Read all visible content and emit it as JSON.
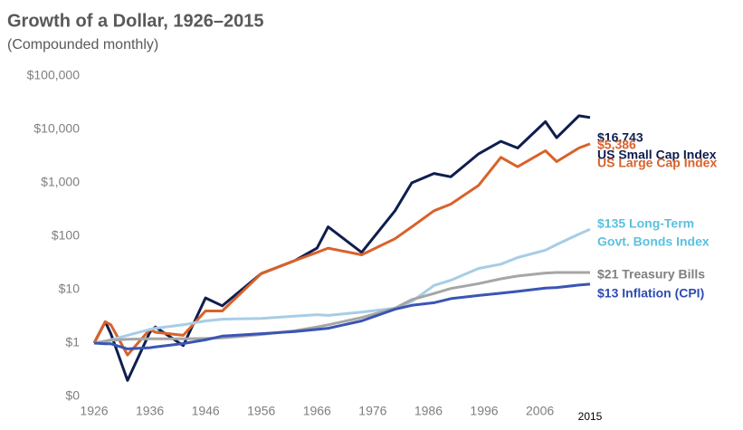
{
  "chart_data": {
    "type": "line",
    "title": "Growth of a Dollar, 1926–2015",
    "subtitle": "(Compounded monthly)",
    "log_scale": true,
    "grid": false,
    "xlim": [
      1926,
      2015
    ],
    "xticks": [
      1926,
      1936,
      1946,
      1956,
      1966,
      1976,
      1986,
      1996,
      2006,
      2015
    ],
    "ylim": [
      0.1,
      100000
    ],
    "yticks": [
      {
        "value": 0.1,
        "label": "$0"
      },
      {
        "value": 1,
        "label": "$1"
      },
      {
        "value": 10,
        "label": "$10"
      },
      {
        "value": 100,
        "label": "$100"
      },
      {
        "value": 1000,
        "label": "$1,000"
      },
      {
        "value": 10000,
        "label": "$10,000"
      },
      {
        "value": 100000,
        "label": "$100,000"
      }
    ],
    "x": [
      1926,
      1928,
      1929,
      1932,
      1936,
      1937,
      1942,
      1946,
      1949,
      1956,
      1962,
      1966,
      1968,
      1974,
      1980,
      1983,
      1987,
      1990,
      1995,
      1999,
      2002,
      2007,
      2009,
      2013,
      2015
    ],
    "series": [
      {
        "label_lines": [
          "$16,743",
          "US Small Cap Index"
        ],
        "color": "#0f1e4f",
        "label_color": "#0f1e4f",
        "values": [
          1,
          2.5,
          1.5,
          0.2,
          1.6,
          2,
          0.9,
          7,
          5,
          20,
          35,
          60,
          150,
          50,
          300,
          1000,
          1500,
          1300,
          3500,
          6000,
          4500,
          14000,
          7000,
          18000,
          16743
        ]
      },
      {
        "label_lines": [
          "$5,386",
          "US Large Cap Index"
        ],
        "color": "#d9622b",
        "label_color": "#d9622b",
        "values": [
          1,
          2.5,
          2.2,
          0.6,
          1.8,
          1.6,
          1.4,
          4,
          4,
          20,
          35,
          50,
          60,
          45,
          90,
          150,
          300,
          400,
          900,
          3000,
          2000,
          4000,
          2500,
          4500,
          5386
        ]
      },
      {
        "label_lines": [
          "$135 Long-Term",
          "Govt. Bonds Index"
        ],
        "color": "#a7cde6",
        "label_color": "#5bc0e0",
        "values": [
          1,
          1.1,
          1.15,
          1.4,
          1.8,
          1.9,
          2.2,
          2.6,
          2.8,
          2.9,
          3.2,
          3.4,
          3.3,
          3.8,
          4.5,
          6,
          12,
          15,
          25,
          30,
          40,
          55,
          70,
          110,
          135
        ]
      },
      {
        "label_lines": [
          "$21 Treasury Bills"
        ],
        "color": "#a6a6a6",
        "label_color": "#7f7f7f",
        "values": [
          1,
          1.08,
          1.13,
          1.18,
          1.2,
          1.2,
          1.2,
          1.22,
          1.25,
          1.45,
          1.7,
          2,
          2.2,
          3,
          4.5,
          6.5,
          8.5,
          10.5,
          13,
          16,
          18,
          20.5,
          21,
          21,
          21
        ]
      },
      {
        "label_lines": [
          "$13 Inflation (CPI)"
        ],
        "color": "#3a55b4",
        "label_color": "#2f4bb5",
        "values": [
          1,
          0.97,
          0.97,
          0.78,
          0.82,
          0.85,
          0.98,
          1.15,
          1.35,
          1.5,
          1.65,
          1.8,
          1.9,
          2.6,
          4.3,
          5.1,
          5.7,
          6.8,
          7.8,
          8.6,
          9.3,
          10.7,
          11,
          12.2,
          12.7
        ]
      }
    ]
  }
}
